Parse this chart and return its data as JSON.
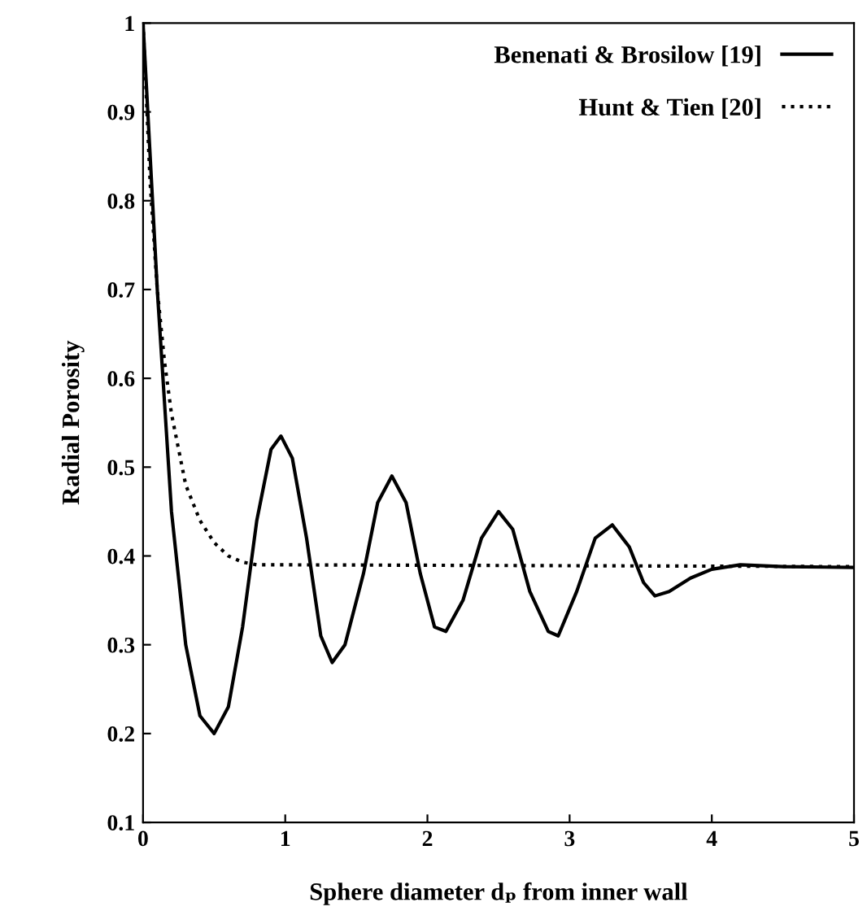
{
  "chart_data": {
    "type": "line",
    "xlabel": "Sphere diameter dₚ from inner wall",
    "ylabel": "Radial Porosity",
    "xlim": [
      0,
      5
    ],
    "ylim": [
      0.1,
      1
    ],
    "xticks": [
      0,
      1,
      2,
      3,
      4,
      5
    ],
    "yticks": [
      0.1,
      0.2,
      0.3,
      0.4,
      0.5,
      0.6,
      0.7,
      0.8,
      0.9,
      1
    ],
    "grid": false,
    "legend": "top right",
    "marker": "none",
    "series": [
      {
        "name": "Benenati & Brosilow [19]",
        "color": "#000000",
        "line_style": "solid",
        "x": [
          0,
          0.05,
          0.1,
          0.2,
          0.3,
          0.4,
          0.5,
          0.6,
          0.7,
          0.8,
          0.9,
          0.97,
          1.05,
          1.15,
          1.25,
          1.33,
          1.42,
          1.55,
          1.65,
          1.75,
          1.85,
          1.95,
          2.05,
          2.13,
          2.25,
          2.38,
          2.5,
          2.6,
          2.72,
          2.85,
          2.92,
          3.05,
          3.18,
          3.3,
          3.42,
          3.52,
          3.6,
          3.7,
          3.85,
          4.0,
          4.2,
          4.5,
          5.0
        ],
        "values": [
          1.0,
          0.85,
          0.7,
          0.45,
          0.3,
          0.22,
          0.2,
          0.23,
          0.32,
          0.44,
          0.52,
          0.535,
          0.51,
          0.42,
          0.31,
          0.28,
          0.3,
          0.38,
          0.46,
          0.49,
          0.46,
          0.38,
          0.32,
          0.315,
          0.35,
          0.42,
          0.45,
          0.43,
          0.36,
          0.315,
          0.31,
          0.36,
          0.42,
          0.435,
          0.41,
          0.37,
          0.355,
          0.36,
          0.375,
          0.385,
          0.39,
          0.388,
          0.387
        ]
      },
      {
        "name": "Hunt & Tien [20]",
        "color": "#000000",
        "line_style": "dotted",
        "x": [
          0,
          0.05,
          0.1,
          0.15,
          0.2,
          0.3,
          0.4,
          0.5,
          0.6,
          0.7,
          0.8,
          1.0,
          5.0
        ],
        "values": [
          1.0,
          0.82,
          0.7,
          0.62,
          0.56,
          0.48,
          0.44,
          0.415,
          0.4,
          0.393,
          0.39,
          0.39,
          0.388
        ]
      }
    ]
  }
}
